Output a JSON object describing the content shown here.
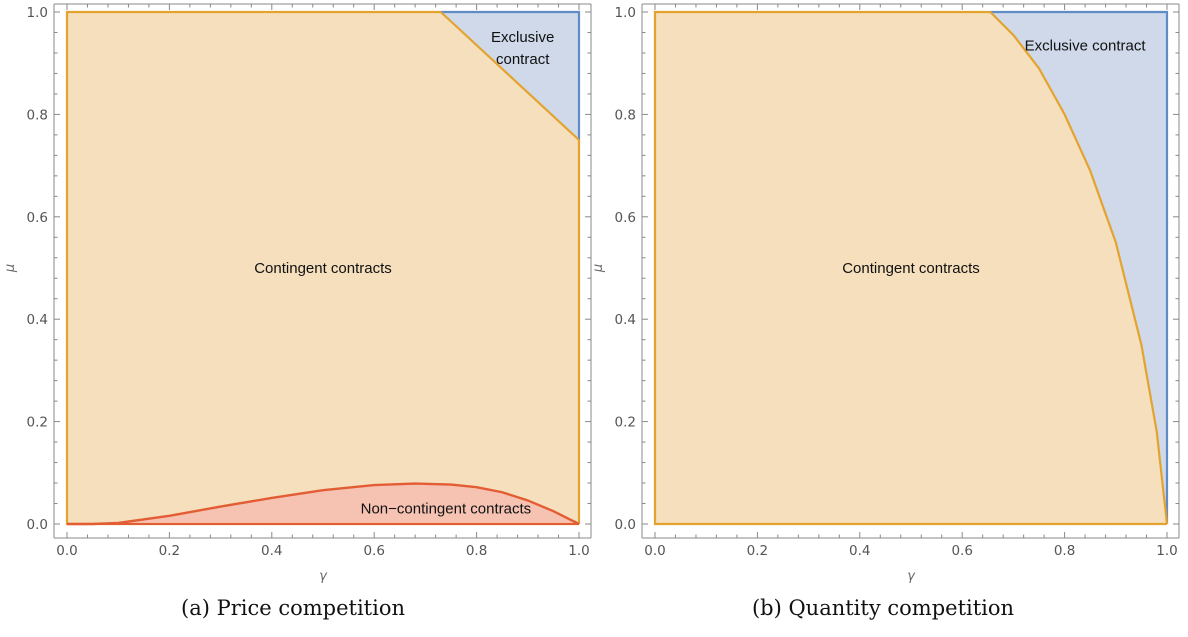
{
  "figure": {
    "colors": {
      "contingent_fill": "#f5dfbc",
      "contingent_stroke": "#e3a32e",
      "exclusive_fill": "#cfd9ea",
      "exclusive_stroke": "#5f8bc6",
      "noncontingent_fill": "#f6c3b3",
      "noncontingent_stroke": "#e35d34",
      "axis": "#888888",
      "text": "#111111"
    }
  },
  "chart_data": [
    {
      "type": "area",
      "caption": "(a) Price competition",
      "xlabel": "γ",
      "ylabel": "μ",
      "xlim": [
        0,
        1
      ],
      "ylim": [
        0,
        1
      ],
      "x_ticks": [
        "0.0",
        "0.2",
        "0.4",
        "0.6",
        "0.8",
        "1.0"
      ],
      "y_ticks": [
        "0.0",
        "0.2",
        "0.4",
        "0.6",
        "0.8",
        "1.0"
      ],
      "grid": false,
      "regions": [
        {
          "name": "Contingent contracts",
          "label_lines": [
            "Contingent contracts"
          ],
          "color": "contingent",
          "label_at": [
            0.5,
            0.5
          ]
        },
        {
          "name": "Exclusive contract",
          "label_lines": [
            "Exclusive",
            "contract"
          ],
          "color": "exclusive",
          "label_at": [
            0.89,
            0.93
          ],
          "boundary": {
            "x": [
              0.73,
              1.0
            ],
            "y": [
              1.0,
              0.75
            ]
          }
        },
        {
          "name": "Non-contingent contracts",
          "label_lines": [
            "Non−contingent contracts"
          ],
          "color": "noncontingent",
          "label_at": [
            0.74,
            0.03
          ],
          "boundary": {
            "x": [
              0.0,
              0.05,
              0.1,
              0.2,
              0.3,
              0.4,
              0.5,
              0.6,
              0.68,
              0.75,
              0.8,
              0.85,
              0.9,
              0.95,
              1.0
            ],
            "y": [
              0.0,
              0.0,
              0.002,
              0.016,
              0.034,
              0.051,
              0.066,
              0.076,
              0.079,
              0.077,
              0.072,
              0.062,
              0.046,
              0.025,
              0.0
            ]
          }
        }
      ]
    },
    {
      "type": "area",
      "caption": "(b) Quantity competition",
      "xlabel": "γ",
      "ylabel": "μ",
      "xlim": [
        0,
        1
      ],
      "ylim": [
        0,
        1
      ],
      "x_ticks": [
        "0.0",
        "0.2",
        "0.4",
        "0.6",
        "0.8",
        "1.0"
      ],
      "y_ticks": [
        "0.0",
        "0.2",
        "0.4",
        "0.6",
        "0.8",
        "1.0"
      ],
      "grid": false,
      "regions": [
        {
          "name": "Contingent contracts",
          "label_lines": [
            "Contingent contracts"
          ],
          "color": "contingent",
          "label_at": [
            0.5,
            0.5
          ]
        },
        {
          "name": "Exclusive contract",
          "label_lines": [
            "Exclusive contract"
          ],
          "color": "exclusive",
          "label_at": [
            0.84,
            0.935
          ],
          "boundary": {
            "x": [
              0.655,
              0.7,
              0.75,
              0.8,
              0.85,
              0.9,
              0.95,
              0.98,
              1.0
            ],
            "y": [
              1.0,
              0.955,
              0.89,
              0.8,
              0.69,
              0.55,
              0.35,
              0.18,
              0.0
            ]
          }
        }
      ]
    }
  ]
}
